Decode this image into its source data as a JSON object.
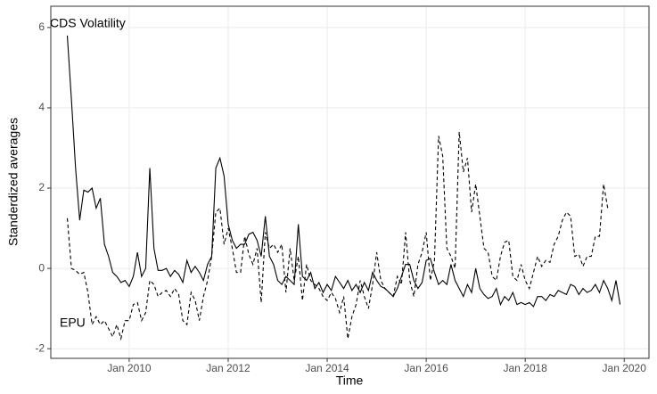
{
  "chart_data": {
    "type": "line",
    "xlabel": "Time",
    "ylabel": "Standerdized averages",
    "x": [
      "2008-10",
      "2008-11",
      "2008-12",
      "2009-01",
      "2009-02",
      "2009-03",
      "2009-04",
      "2009-05",
      "2009-06",
      "2009-07",
      "2009-08",
      "2009-09",
      "2009-10",
      "2009-11",
      "2009-12",
      "2010-01",
      "2010-02",
      "2010-03",
      "2010-04",
      "2010-05",
      "2010-06",
      "2010-07",
      "2010-08",
      "2010-09",
      "2010-10",
      "2010-11",
      "2010-12",
      "2011-01",
      "2011-02",
      "2011-03",
      "2011-04",
      "2011-05",
      "2011-06",
      "2011-07",
      "2011-08",
      "2011-09",
      "2011-10",
      "2011-11",
      "2011-12",
      "2012-01",
      "2012-02",
      "2012-03",
      "2012-04",
      "2012-05",
      "2012-06",
      "2012-07",
      "2012-08",
      "2012-09",
      "2012-10",
      "2012-11",
      "2012-12",
      "2013-01",
      "2013-02",
      "2013-03",
      "2013-04",
      "2013-05",
      "2013-06",
      "2013-07",
      "2013-08",
      "2013-09",
      "2013-10",
      "2013-11",
      "2013-12",
      "2014-01",
      "2014-02",
      "2014-03",
      "2014-04",
      "2014-05",
      "2014-06",
      "2014-07",
      "2014-08",
      "2014-09",
      "2014-10",
      "2014-11",
      "2014-12",
      "2015-01",
      "2015-02",
      "2015-03",
      "2015-04",
      "2015-05",
      "2015-06",
      "2015-07",
      "2015-08",
      "2015-09",
      "2015-10",
      "2015-11",
      "2015-12",
      "2016-01",
      "2016-02",
      "2016-03",
      "2016-04",
      "2016-05",
      "2016-06",
      "2016-07",
      "2016-08",
      "2016-09",
      "2016-10",
      "2016-11",
      "2016-12",
      "2017-01",
      "2017-02",
      "2017-03",
      "2017-04",
      "2017-05",
      "2017-06",
      "2017-07",
      "2017-08",
      "2017-09",
      "2017-10",
      "2017-11",
      "2017-12",
      "2018-01",
      "2018-02",
      "2018-03",
      "2018-04",
      "2018-05",
      "2018-06",
      "2018-07",
      "2018-08",
      "2018-09",
      "2018-10",
      "2018-11",
      "2018-12",
      "2019-01",
      "2019-02",
      "2019-03",
      "2019-04",
      "2019-05",
      "2019-06",
      "2019-07",
      "2019-08",
      "2019-09",
      "2019-10",
      "2019-11",
      "2019-12"
    ],
    "series": [
      {
        "name": "CDS Volatility",
        "color": "#000000",
        "line_style": "solid",
        "values": [
          5.8,
          4.2,
          2.5,
          1.2,
          1.95,
          1.9,
          2.0,
          1.5,
          1.75,
          0.6,
          0.3,
          -0.1,
          -0.2,
          -0.35,
          -0.3,
          -0.45,
          -0.2,
          0.4,
          -0.2,
          0.0,
          2.5,
          0.5,
          -0.05,
          -0.05,
          0.0,
          -0.2,
          -0.05,
          -0.15,
          -0.35,
          0.2,
          -0.1,
          0.05,
          -0.1,
          -0.3,
          0.1,
          0.3,
          2.5,
          2.75,
          2.3,
          1.1,
          0.7,
          0.5,
          0.6,
          0.6,
          0.85,
          0.9,
          0.7,
          0.3,
          1.3,
          0.3,
          0.1,
          -0.3,
          -0.4,
          -0.2,
          -0.3,
          -0.4,
          1.1,
          -0.2,
          -0.3,
          -0.1,
          -0.5,
          -0.35,
          -0.6,
          -0.4,
          -0.55,
          -0.2,
          -0.35,
          -0.5,
          -0.3,
          -0.55,
          -0.4,
          -0.6,
          -0.35,
          -0.55,
          -0.1,
          -0.3,
          -0.45,
          -0.5,
          -0.6,
          -0.7,
          -0.5,
          -0.2,
          0.1,
          0.1,
          -0.3,
          -0.5,
          -0.35,
          0.2,
          0.25,
          -0.1,
          -0.4,
          -0.3,
          -0.4,
          0.1,
          -0.3,
          -0.5,
          -0.7,
          -0.4,
          -0.6,
          0.0,
          -0.5,
          -0.65,
          -0.75,
          -0.7,
          -0.5,
          -0.9,
          -0.7,
          -0.8,
          -0.6,
          -0.9,
          -0.85,
          -0.9,
          -0.85,
          -0.95,
          -0.7,
          -0.7,
          -0.8,
          -0.65,
          -0.7,
          -0.55,
          -0.6,
          -0.65,
          -0.4,
          -0.45,
          -0.65,
          -0.5,
          -0.6,
          -0.55,
          -0.4,
          -0.6,
          -0.3,
          -0.5,
          -0.8,
          -0.3,
          -0.9
        ]
      },
      {
        "name": "EPU",
        "color": "#000000",
        "line_style": "dashed",
        "values": [
          1.25,
          0.0,
          -0.05,
          -0.15,
          -0.1,
          -0.6,
          -1.4,
          -1.2,
          -1.4,
          -1.3,
          -1.5,
          -1.7,
          -1.4,
          -1.75,
          -1.3,
          -1.3,
          -0.9,
          -0.85,
          -1.3,
          -1.1,
          -0.3,
          -0.4,
          -0.7,
          -0.6,
          -0.55,
          -0.7,
          -0.5,
          -0.65,
          -1.3,
          -1.4,
          -0.6,
          -0.8,
          -1.3,
          -0.7,
          -0.3,
          0.3,
          1.4,
          1.5,
          0.6,
          1.0,
          0.5,
          -0.1,
          -0.1,
          0.8,
          0.35,
          0.1,
          0.5,
          -0.85,
          0.9,
          0.5,
          0.6,
          0.4,
          0.6,
          -0.6,
          0.5,
          -0.3,
          0.3,
          -0.8,
          0.1,
          -0.3,
          -0.4,
          -0.5,
          -0.7,
          -0.8,
          -0.6,
          -0.75,
          -1.1,
          -0.7,
          -1.75,
          -1.2,
          -0.9,
          -0.3,
          -0.7,
          -1.0,
          -0.4,
          0.4,
          -0.3,
          -0.5,
          -0.6,
          -0.7,
          -0.2,
          -0.4,
          0.9,
          -0.3,
          -0.7,
          0.1,
          0.4,
          0.9,
          -0.3,
          0.2,
          3.3,
          2.8,
          0.5,
          0.3,
          0.0,
          3.4,
          2.4,
          2.75,
          1.4,
          2.1,
          1.3,
          0.5,
          0.4,
          -0.2,
          -0.3,
          0.3,
          0.65,
          0.7,
          -0.2,
          -0.3,
          0.1,
          -0.3,
          -0.5,
          -0.1,
          0.3,
          0.05,
          0.2,
          0.15,
          0.6,
          0.8,
          1.2,
          1.4,
          1.3,
          0.3,
          0.35,
          0.05,
          0.3,
          0.3,
          0.8,
          0.8,
          2.1,
          1.5,
          null,
          null,
          null
        ]
      }
    ],
    "xlim": [
      "2008-06",
      "2020-07"
    ],
    "xticks": [
      {
        "value": "2010-01",
        "label": "Jan 2010"
      },
      {
        "value": "2012-01",
        "label": "Jan 2012"
      },
      {
        "value": "2014-01",
        "label": "Jan 2014"
      },
      {
        "value": "2016-01",
        "label": "Jan 2016"
      },
      {
        "value": "2018-01",
        "label": "Jan 2018"
      },
      {
        "value": "2020-01",
        "label": "Jan 2020"
      }
    ],
    "ylim": [
      -2.24,
      6.53
    ],
    "yticks": [
      -2,
      0,
      2,
      4,
      6
    ],
    "grid": true
  }
}
